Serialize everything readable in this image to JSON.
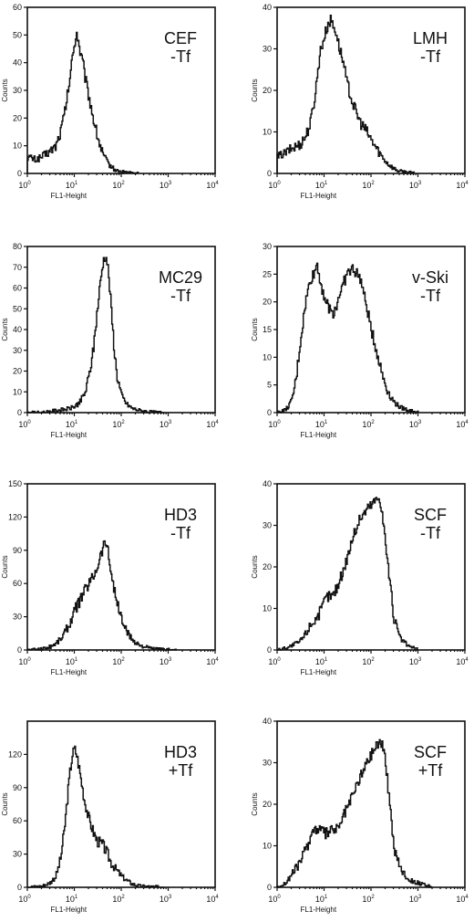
{
  "chart_data": [
    {
      "type": "area",
      "label_line1": "CEF",
      "label_line2": "-Tf",
      "xlabel": "FL1-Height",
      "ylabel": "Counts",
      "xscale": "log",
      "xlim": [
        1,
        10000
      ],
      "ylim": [
        0,
        60
      ],
      "yticks": [
        0,
        10,
        20,
        30,
        40,
        50,
        60
      ],
      "x": [
        1,
        1.5,
        2,
        3,
        4,
        5,
        6,
        7,
        8,
        9,
        10,
        11,
        12,
        13,
        15,
        17,
        20,
        25,
        30,
        35,
        40,
        50,
        60,
        70,
        80,
        100,
        130,
        170,
        220
      ],
      "y": [
        6,
        5,
        6,
        8,
        10,
        15,
        21,
        28,
        35,
        42,
        47,
        51,
        48,
        44,
        40,
        34,
        28,
        20,
        14,
        10,
        7,
        4,
        2.5,
        1.5,
        1,
        0.5,
        0.5,
        0.2,
        0
      ]
    },
    {
      "type": "area",
      "label_line1": "LMH",
      "label_line2": "-Tf",
      "xlabel": "FL1-Height",
      "ylabel": "Counts",
      "xscale": "log",
      "xlim": [
        1,
        10000
      ],
      "ylim": [
        0,
        40
      ],
      "yticks": [
        0,
        10,
        20,
        30,
        40
      ],
      "x": [
        1,
        1.5,
        2,
        3,
        4,
        5,
        6,
        7,
        8,
        10,
        12,
        14,
        16,
        18,
        20,
        25,
        30,
        40,
        50,
        60,
        70,
        80,
        100,
        130,
        170,
        220,
        300,
        400,
        600,
        800
      ],
      "y": [
        4,
        5,
        6,
        7,
        9,
        12,
        17,
        23,
        29,
        33,
        36,
        37,
        35,
        34,
        31,
        27,
        22,
        17,
        14,
        12,
        11,
        10,
        8,
        6,
        4,
        2.5,
        1.2,
        0.5,
        0.3,
        0
      ]
    },
    {
      "type": "area",
      "label_line1": "MC29",
      "label_line2": "-Tf",
      "xlabel": "FL1-Height",
      "ylabel": "Counts",
      "xscale": "log",
      "xlim": [
        1,
        10000
      ],
      "ylim": [
        0,
        80
      ],
      "yticks": [
        0,
        10,
        20,
        30,
        40,
        50,
        60,
        70,
        80
      ],
      "x": [
        1,
        2,
        4,
        6,
        8,
        10,
        13,
        17,
        20,
        25,
        30,
        35,
        40,
        45,
        50,
        55,
        60,
        70,
        80,
        100,
        130,
        170,
        250,
        400,
        800
      ],
      "y": [
        0,
        0,
        1,
        1.5,
        2,
        3,
        5,
        10,
        17,
        30,
        48,
        62,
        72,
        76,
        72,
        62,
        50,
        30,
        18,
        8,
        4,
        2,
        1,
        0.3,
        0
      ]
    },
    {
      "type": "area",
      "label_line1": "v-Ski",
      "label_line2": "-Tf",
      "xlabel": "FL1-Height",
      "ylabel": "Counts",
      "xscale": "log",
      "xlim": [
        1,
        10000
      ],
      "ylim": [
        0,
        30
      ],
      "yticks": [
        0,
        5,
        10,
        15,
        20,
        25,
        30
      ],
      "x": [
        1,
        1.5,
        2,
        2.5,
        3,
        4,
        5,
        6,
        7,
        8,
        10,
        12,
        15,
        18,
        20,
        25,
        30,
        40,
        50,
        60,
        70,
        80,
        100,
        130,
        170,
        220,
        300,
        400,
        600,
        1000
      ],
      "y": [
        0,
        0.5,
        2,
        6,
        12,
        20,
        24,
        25,
        27,
        24,
        21,
        19,
        18,
        19,
        21,
        23,
        25,
        26,
        25,
        24,
        21,
        19,
        15,
        11,
        7,
        4,
        2,
        1,
        0.5,
        0
      ]
    },
    {
      "type": "area",
      "label_line1": "HD3",
      "label_line2": "-Tf",
      "xlabel": "FL1-Height",
      "ylabel": "Counts",
      "xscale": "log",
      "xlim": [
        1,
        10000
      ],
      "ylim": [
        0,
        150
      ],
      "yticks": [
        0,
        30,
        60,
        90,
        120,
        150
      ],
      "x": [
        1,
        2,
        3,
        4,
        5,
        6,
        8,
        10,
        13,
        17,
        20,
        25,
        30,
        35,
        40,
        45,
        50,
        55,
        60,
        70,
        80,
        100,
        130,
        170,
        250,
        400,
        700,
        1500
      ],
      "y": [
        0,
        1,
        3,
        6,
        10,
        15,
        25,
        35,
        45,
        55,
        60,
        67,
        75,
        85,
        92,
        99,
        92,
        80,
        70,
        55,
        42,
        28,
        16,
        9,
        4,
        1.5,
        0.5,
        0
      ]
    },
    {
      "type": "area",
      "label_line1": "SCF",
      "label_line2": "-Tf",
      "xlabel": "FL1-Height",
      "ylabel": "Counts",
      "xscale": "log",
      "xlim": [
        1,
        10000
      ],
      "ylim": [
        0,
        40
      ],
      "yticks": [
        0,
        10,
        20,
        30,
        40
      ],
      "x": [
        1,
        1.5,
        2,
        3,
        4,
        5,
        7,
        9,
        10,
        12,
        15,
        20,
        25,
        30,
        40,
        50,
        60,
        70,
        80,
        100,
        120,
        150,
        170,
        200,
        250,
        300,
        400,
        600,
        1000
      ],
      "y": [
        0,
        0.5,
        1,
        2,
        4,
        6,
        8,
        10,
        12,
        13,
        13,
        16,
        19,
        22,
        27,
        30,
        32,
        33,
        34,
        35,
        36,
        37,
        33,
        26,
        16,
        8,
        3,
        1,
        0
      ]
    },
    {
      "type": "area",
      "label_line1": "HD3",
      "label_line2": "+Tf",
      "xlabel": "FL1-Height",
      "ylabel": "Counts",
      "xscale": "log",
      "xlim": [
        1,
        10000
      ],
      "ylim": [
        0,
        150
      ],
      "yticks": [
        0,
        30,
        60,
        90,
        120
      ],
      "x": [
        1,
        2,
        3,
        4,
        5,
        6,
        7,
        8,
        9,
        10,
        11,
        12,
        14,
        16,
        20,
        25,
        30,
        35,
        40,
        50,
        60,
        80,
        100,
        130,
        170,
        250,
        400,
        800
      ],
      "y": [
        0,
        1,
        4,
        10,
        25,
        50,
        80,
        105,
        120,
        125,
        120,
        112,
        95,
        80,
        62,
        50,
        42,
        40,
        38,
        30,
        22,
        15,
        10,
        6,
        3,
        1,
        0.5,
        0
      ]
    },
    {
      "type": "area",
      "label_line1": "SCF",
      "label_line2": "+Tf",
      "xlabel": "FL1-Height",
      "ylabel": "Counts",
      "xscale": "log",
      "xlim": [
        1,
        10000
      ],
      "ylim": [
        0,
        40
      ],
      "yticks": [
        0,
        10,
        20,
        30,
        40
      ],
      "x": [
        1,
        1.5,
        2,
        3,
        4,
        5,
        6,
        8,
        10,
        12,
        15,
        20,
        25,
        30,
        40,
        50,
        60,
        80,
        100,
        120,
        150,
        170,
        200,
        250,
        300,
        400,
        600,
        1000,
        2000
      ],
      "y": [
        0,
        1,
        3,
        6,
        9,
        12,
        14,
        14,
        13,
        13,
        14,
        14,
        17,
        19,
        22,
        25,
        27,
        30,
        32,
        34,
        35,
        35,
        30,
        20,
        10,
        5,
        2,
        1,
        0
      ]
    }
  ]
}
